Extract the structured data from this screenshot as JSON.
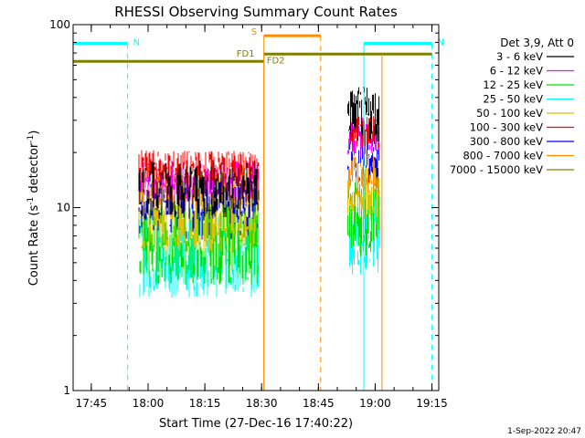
{
  "chart_data": {
    "type": "line",
    "title": "RHESSI Observing Summary Count Rates",
    "xlabel": "Start Time (27-Dec-16 17:40:22)",
    "ylabel_main": "Count Rate (s",
    "ylabel_sup": "-1",
    "ylabel_mid": " detector",
    "ylabel_sup2": "-1",
    "ylabel_end": ")",
    "x_range_min": [
      17.67,
      19.28
    ],
    "y_range": [
      1,
      100
    ],
    "y_scale": "log",
    "x_ticks": [
      {
        "label": "17:45",
        "t": 17.75
      },
      {
        "label": "18:00",
        "t": 18.0
      },
      {
        "label": "18:15",
        "t": 18.25
      },
      {
        "label": "18:30",
        "t": 18.5
      },
      {
        "label": "18:45",
        "t": 18.75
      },
      {
        "label": "19:00",
        "t": 19.0
      },
      {
        "label": "19:15",
        "t": 19.25
      }
    ],
    "y_ticks": [
      {
        "label": "1",
        "v": 1
      },
      {
        "label": "10",
        "v": 10
      },
      {
        "label": "100",
        "v": 100
      }
    ],
    "legend_title": "Det 3,9, Att 0",
    "legend_placement": "right",
    "series": [
      {
        "name": "3 - 6 keV",
        "color": "#000000",
        "seg1": 12.5,
        "seg2": 32.0,
        "spread": 0.2
      },
      {
        "name": "6 - 12 keV",
        "color": "#ff00ff",
        "seg1": 14.0,
        "seg2": 24.0,
        "spread": 0.14
      },
      {
        "name": "12 - 25 keV",
        "color": "#00e000",
        "seg1": 6.3,
        "seg2": 9.0,
        "spread": 0.28
      },
      {
        "name": "25 - 50 keV",
        "color": "#00ffff",
        "seg1": 5.4,
        "seg2": 7.2,
        "spread": 0.28
      },
      {
        "name": "50 - 100 keV",
        "color": "#e0c000",
        "seg1": 8.2,
        "seg2": 11.5,
        "spread": 0.2
      },
      {
        "name": "100 - 300 keV",
        "color": "#ff0000",
        "seg1": 16.5,
        "seg2": 26.0,
        "spread": 0.12
      },
      {
        "name": "300 - 800 keV",
        "color": "#0000ff",
        "seg1": 9.6,
        "seg2": 19.0,
        "spread": 0.2
      },
      {
        "name": "800 - 7000 keV",
        "color": "#ff8c00",
        "seg1": 13.0,
        "seg2": 15.0,
        "spread": 0.14
      },
      {
        "name": "7000 - 15000 keV",
        "color": "#808000",
        "seg1": 0,
        "seg2": 0,
        "spread": 0
      }
    ],
    "data_segments": [
      {
        "t0": 17.96,
        "t1": 18.49
      },
      {
        "t0": 18.88,
        "t1": 19.02
      }
    ],
    "annotations": [
      {
        "label": "N",
        "color": "#00ffff",
        "t0": 17.67,
        "t1": 17.91,
        "y": 79,
        "dashed_at": 17.91,
        "solid_at": 17.67
      },
      {
        "label": "N",
        "color": "#00ffff",
        "t0": 18.95,
        "t1": 19.25,
        "y": 79,
        "dashed_at": 19.25,
        "solid_at": 18.95
      },
      {
        "label": "S",
        "color": "#ff8c00",
        "t0": 18.51,
        "t1": 18.76,
        "y": 87,
        "dashed_at": 18.76,
        "solid_at": 18.51
      },
      {
        "label": "FD1",
        "color": "#808000",
        "t0": 17.67,
        "t1": 18.51,
        "y": 63
      },
      {
        "label": "FD2",
        "color": "#808000",
        "t0": 18.51,
        "t1": 19.25,
        "y": 69
      }
    ],
    "footer_date": "1-Sep-2022 20:47"
  }
}
